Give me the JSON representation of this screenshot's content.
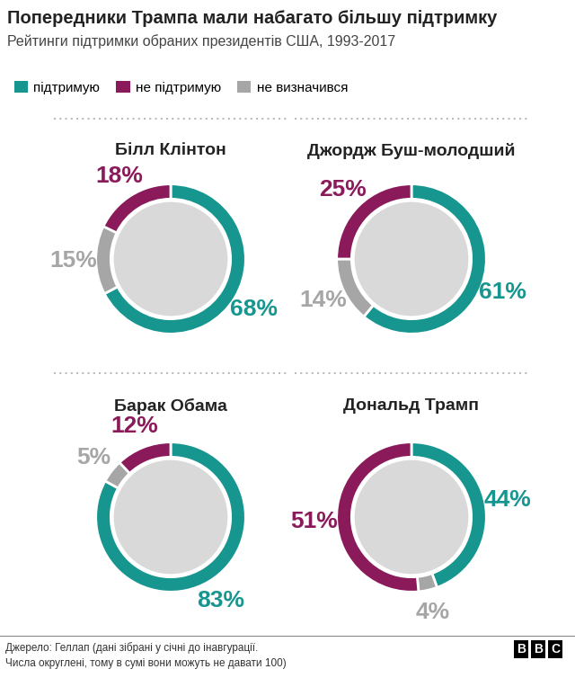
{
  "title": "Попередники Трампа мали набагато більшу підтримку",
  "subtitle": "Рейтинги підтримки обраних президентів США, 1993-2017",
  "legend": "upper left",
  "footnote": [
    "Джерело: Геллап (дані зібрані у січні до інавгурації.",
    "Числа округлені, тому в сумі вони можуть не давати 100)"
  ],
  "logo": "BBC",
  "chart_data": [
    {
      "type": "pie",
      "title": "Білл Клінтон",
      "categories": [
        "підтримую",
        "не підтримую",
        "не визначився"
      ],
      "values": [
        68,
        18,
        15
      ],
      "value_labels": [
        "68%",
        "18%",
        "15%"
      ],
      "colors": [
        "#16968f",
        "#8a1a5a",
        "#a6a6a6"
      ],
      "data_labels": true
    },
    {
      "type": "pie",
      "title": "Джордж Буш-молодший",
      "categories": [
        "підтримую",
        "не підтримую",
        "не визначився"
      ],
      "values": [
        61,
        25,
        14
      ],
      "value_labels": [
        "61%",
        "25%",
        "14%"
      ],
      "colors": [
        "#16968f",
        "#8a1a5a",
        "#a6a6a6"
      ],
      "data_labels": true
    },
    {
      "type": "pie",
      "title": "Барак Обама",
      "categories": [
        "підтримую",
        "не підтримую",
        "не визначився"
      ],
      "values": [
        83,
        12,
        5
      ],
      "value_labels": [
        "83%",
        "12%",
        "5%"
      ],
      "colors": [
        "#16968f",
        "#8a1a5a",
        "#a6a6a6"
      ],
      "data_labels": true
    },
    {
      "type": "pie",
      "title": "Дональд Трамп",
      "categories": [
        "підтримую",
        "не підтримую",
        "не визначився"
      ],
      "values": [
        44,
        51,
        4
      ],
      "value_labels": [
        "44%",
        "51%",
        "4%"
      ],
      "colors": [
        "#16968f",
        "#8a1a5a",
        "#a6a6a6"
      ],
      "data_labels": true
    }
  ]
}
